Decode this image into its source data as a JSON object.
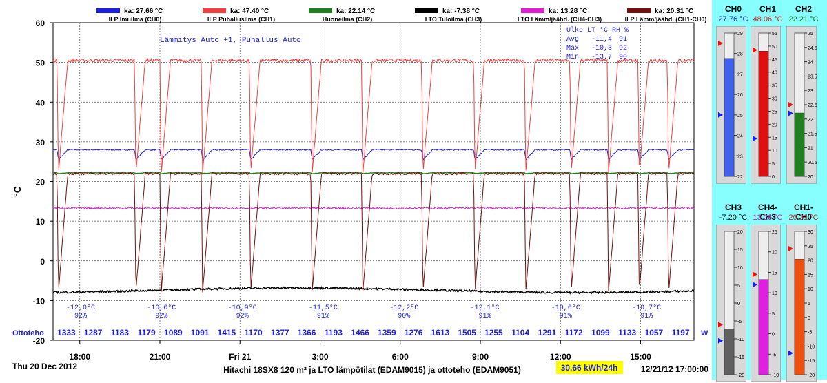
{
  "header": {
    "legend": [
      {
        "name": "ILP Imuilma (CH0)",
        "avg": "ka: 27.66 °C",
        "color": "#2020E0"
      },
      {
        "name": "ILP Puhallusilma (CH1)",
        "avg": "ka: 47.40 °C",
        "color": "#F04040"
      },
      {
        "name": "Huoneilma (CH2)",
        "avg": "ka: 22.14 °C",
        "color": "#208020"
      },
      {
        "name": "LTO Tuloilma (CH3)",
        "avg": "ka: -7.38 °C",
        "color": "#000000"
      },
      {
        "name": "LTO Lämm/jäähd. (CH4-CH3)",
        "avg": "ka: 13.28 °C",
        "color": "#E020D0"
      },
      {
        "name": "ILP Lämm/jäähd. (CH1-CH0)",
        "avg": "ka: 20.31 °C",
        "color": "#701010"
      }
    ]
  },
  "plot": {
    "mode_text": "Lämmitys Auto +1, Puhallus Auto",
    "outdoor_box": {
      "header": "Ulko  LT °C RH %",
      "rows": [
        {
          "label": "Avg",
          "temp": "-11,4",
          "rh": "91"
        },
        {
          "label": "Max",
          "temp": "-10,3",
          "rh": "92"
        },
        {
          "label": "Min",
          "temp": "-13,7",
          "rh": "90"
        }
      ]
    },
    "outdoor_readings": [
      {
        "temp": "-12,0°C",
        "rh": "92%"
      },
      {
        "temp": "-10,6°C",
        "rh": "92%"
      },
      {
        "temp": "-10,9°C",
        "rh": "92%"
      },
      {
        "temp": "-11,5°C",
        "rh": "91%"
      },
      {
        "temp": "-12,2°C",
        "rh": "90%"
      },
      {
        "temp": "-12,1°C",
        "rh": "91%"
      },
      {
        "temp": "-10,6°C",
        "rh": "91%"
      },
      {
        "temp": "-10,7°C",
        "rh": "91%"
      }
    ],
    "ottoteho_label": "Ottoteho",
    "ottoteho_unit": "W",
    "ottoteho_values": [
      "1333",
      "1287",
      "1183",
      "1179",
      "1089",
      "1091",
      "1415",
      "1170",
      "1377",
      "1366",
      "1193",
      "1466",
      "1359",
      "1276",
      "1613",
      "1505",
      "1255",
      "1104",
      "1291",
      "1172",
      "1099",
      "1133",
      "1057",
      "1197"
    ]
  },
  "footer": {
    "date": "Thu 20 Dec 2012",
    "title": "Hitachi 18SX8 120 m² ja LTO lämpötilat (EDAM9015) ja ottoteho (EDAM9051)",
    "energy": "30.66 kWh/24h",
    "timestamp": "12/21/12 17:00:00"
  },
  "chart_data": {
    "type": "line",
    "ylabel": "°C",
    "ylim": [
      -20,
      60
    ],
    "yticks": [
      60,
      50,
      40,
      30,
      20,
      10,
      0,
      -10,
      -20
    ],
    "xlim": [
      17,
      41
    ],
    "xticks": [
      {
        "x": 18,
        "label": "18:00"
      },
      {
        "x": 21,
        "label": "21:00"
      },
      {
        "x": 24,
        "label": "Fri 21"
      },
      {
        "x": 27,
        "label": "3:00"
      },
      {
        "x": 30,
        "label": "6:00"
      },
      {
        "x": 33,
        "label": "9:00"
      },
      {
        "x": 36,
        "label": "12:00"
      },
      {
        "x": 39,
        "label": "15:00"
      }
    ],
    "grid": true,
    "defrost_times": [
      17.2,
      20.1,
      21.05,
      22.6,
      24.4,
      26.7,
      28.6,
      30.85,
      32.8,
      34.7,
      36.4,
      37.8,
      38.95,
      40.05
    ],
    "series": [
      {
        "name": "ILP Imuilma (CH0)",
        "color": "#2020E0",
        "base": 28.0,
        "dip": 25.5,
        "noise": 0.15
      },
      {
        "name": "ILP Puhallusilma (CH1)",
        "color": "#F04040",
        "base": 50.5,
        "dip": 22.0,
        "noise": 0.4
      },
      {
        "name": "Huoneilma (CH2)",
        "color": "#208020",
        "base": 22.2,
        "dip": 22.0,
        "noise": 0.05
      },
      {
        "name": "LTO Tuloilma (CH3)",
        "color": "#000000",
        "base": -7.4,
        "dip": -7.4,
        "noise": 0.25
      },
      {
        "name": "LTO Lämm/jäähd. (CH4-CH3)",
        "color": "#E020D0",
        "base": 13.3,
        "dip": 13.3,
        "noise": 0.25
      },
      {
        "name": "ILP Lämm/jäähd. (CH1-CH0)",
        "color": "#701010",
        "base": 22.0,
        "dip": -8.0,
        "noise": 0.3
      }
    ]
  },
  "gauges": [
    {
      "name": "CH0",
      "value_text": "27.76 °C",
      "value": 27.76,
      "min": 22,
      "max": 29,
      "ticks": [
        22,
        23,
        24,
        25,
        26,
        27,
        28,
        29
      ],
      "fill": "#4060F0",
      "val_color": "#2020E0",
      "red_mark": 28.5,
      "blue_mark": 25.0
    },
    {
      "name": "CH1",
      "value_text": "48.06 °C",
      "value": 48.06,
      "min": 0,
      "max": 55,
      "ticks": [
        0,
        5,
        10,
        15,
        20,
        25,
        30,
        35,
        40,
        45,
        50,
        55
      ],
      "fill": "#E01010",
      "val_color": "#E02020",
      "red_mark": 48.5,
      "blue_mark": 14.5
    },
    {
      "name": "CH2",
      "value_text": "22.21 °C",
      "value": 22.21,
      "min": 20,
      "max": 25,
      "ticks": [
        20,
        20.5,
        21,
        21.5,
        22,
        22.5,
        23,
        23.5,
        24,
        24.5,
        25
      ],
      "fill": "#208020",
      "val_color": "#208020",
      "red_mark": 22.5,
      "blue_mark": 22.2
    },
    {
      "name": "CH3",
      "value_text": "-7.20 °C",
      "value": -7.2,
      "min": -20,
      "max": 20,
      "ticks": [
        -20,
        -15,
        -10,
        -5,
        0,
        5,
        10,
        15,
        20
      ],
      "fill": "#606060",
      "val_color": "#000000",
      "red_mark": -6.0,
      "blue_mark": -10.5
    },
    {
      "name": "CH4-CH3",
      "value_text": "13.26 °C",
      "value": 13.26,
      "min": -10,
      "max": 25,
      "ticks": [
        -10,
        -5,
        0,
        5,
        10,
        15,
        20,
        25
      ],
      "fill": "#E020E0",
      "val_color": "#C020C0",
      "red_mark": 14.5,
      "blue_mark": 12.0
    },
    {
      "name": "CH1-CH0",
      "value_text": "20.31 °C",
      "value": 20.31,
      "min": -20,
      "max": 30,
      "ticks": [
        -20,
        -15,
        -10,
        -5,
        0,
        5,
        10,
        15,
        20,
        25,
        30
      ],
      "fill": "#F05010",
      "val_color": "#E02020",
      "red_mark": 24.0,
      "blue_mark": -12.5
    }
  ]
}
